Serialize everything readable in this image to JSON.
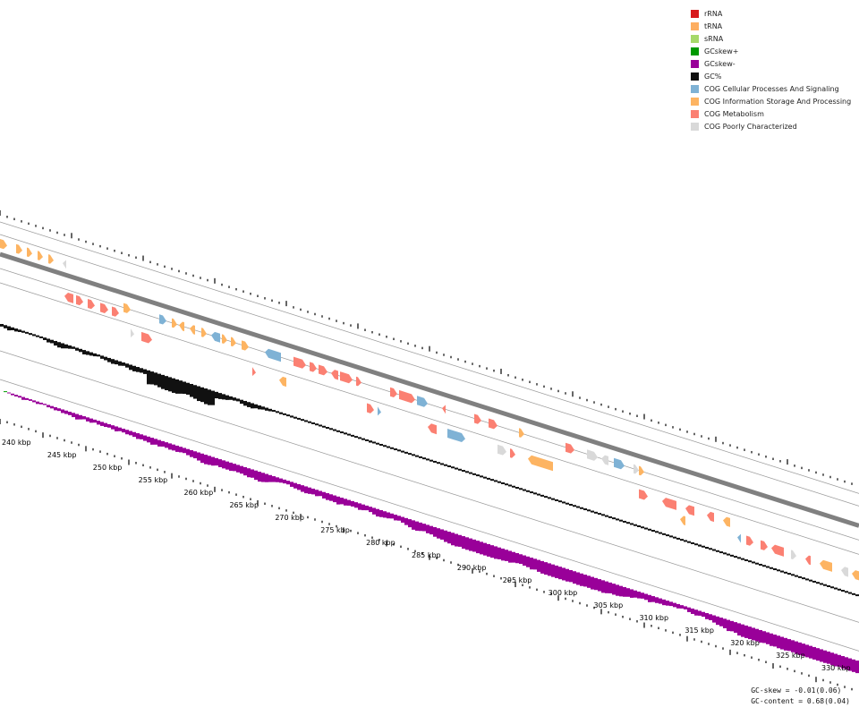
{
  "legend": [
    {
      "label": "rRNA",
      "color": "#d7191c"
    },
    {
      "label": "tRNA",
      "color": "#fdae61"
    },
    {
      "label": "sRNA",
      "color": "#a6d96a"
    },
    {
      "label": "GCskew+",
      "color": "#009900"
    },
    {
      "label": "GCskew-",
      "color": "#990099"
    },
    {
      "label": "GC%",
      "color": "#111111"
    },
    {
      "label": "COG Cellular Processes And Signaling",
      "color": "#7fb2d5"
    },
    {
      "label": "COG Information Storage And Processing",
      "color": "#fdb462"
    },
    {
      "label": "COG Metabolism",
      "color": "#fb8072"
    },
    {
      "label": "COG Poorly Characterized",
      "color": "#d9d9d9"
    }
  ],
  "axis": {
    "start_kbp": 240,
    "end_kbp": 330,
    "step_kbp": 5,
    "labels": [
      "240 kbp",
      "245 kbp",
      "250 kbp",
      "255 kbp",
      "260 kbp",
      "265 kbp",
      "270 kbp",
      "275 kbp",
      "280 kbp",
      "285 kbp",
      "290 kbp",
      "295 kbp",
      "300 kbp",
      "305 kbp",
      "310 kbp",
      "315 kbp",
      "320 kbp",
      "325 kbp",
      "330 kbp"
    ]
  },
  "stats": {
    "gc_skew": "GC-skew = -0.01(0.06)",
    "gc_content": "GC-content = 0.68(0.04)"
  },
  "colors": {
    "backbone": "#808080",
    "ring": "#999999",
    "tick": "#000000"
  }
}
